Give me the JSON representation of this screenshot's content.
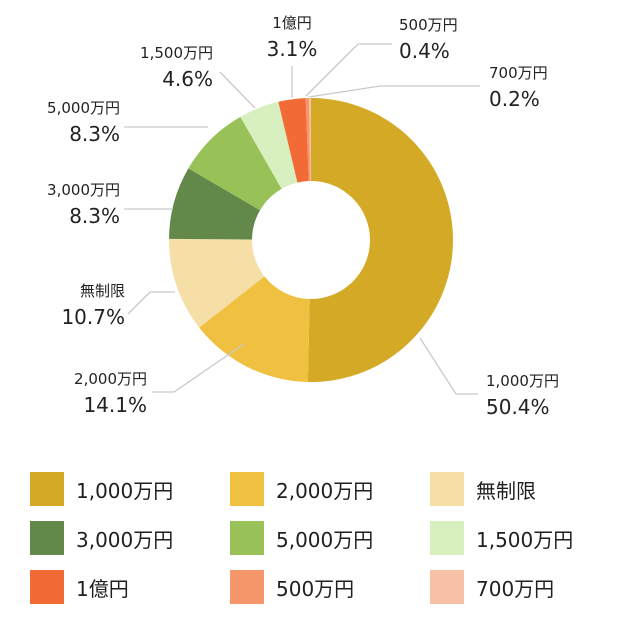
{
  "chart_data": {
    "type": "pie",
    "donut": true,
    "categories": [
      "1,000万円",
      "2,000万円",
      "無制限",
      "3,000万円",
      "5,000万円",
      "1,500万円",
      "1億円",
      "500万円",
      "700万円"
    ],
    "values": [
      50.4,
      14.1,
      10.7,
      8.3,
      8.3,
      4.6,
      3.1,
      0.4,
      0.2
    ],
    "value_labels": [
      "50.4%",
      "14.1%",
      "10.7%",
      "8.3%",
      "8.3%",
      "4.6%",
      "3.1%",
      "0.4%",
      "0.2%"
    ],
    "colors": [
      "#d4a925",
      "#f0c040",
      "#f5dfa6",
      "#62884a",
      "#98c158",
      "#d8f0c0",
      "#f26a35",
      "#f5976b",
      "#f9c0a8"
    ],
    "legend_position": "bottom",
    "start_angle": "12 o'clock",
    "direction": "clockwise"
  }
}
